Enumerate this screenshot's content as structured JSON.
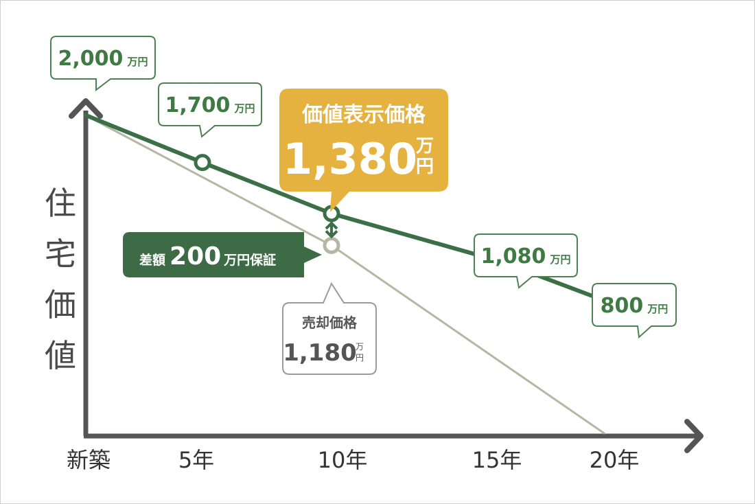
{
  "chart_data": {
    "type": "line",
    "x_categories": [
      "新築",
      "5年",
      "10年",
      "15年",
      "20年"
    ],
    "y_axis_label": "住宅価値",
    "unit": "万円",
    "series": [
      {
        "values": [
          2000,
          1700,
          1380,
          1080,
          800
        ]
      },
      {
        "values": [
          2000,
          null,
          1180,
          null,
          0
        ]
      }
    ],
    "grid": false,
    "callouts": [
      {
        "kind": "value",
        "x": "新築",
        "value": "2,000",
        "unit": "万円"
      },
      {
        "kind": "value",
        "x": "5年",
        "value": "1,700",
        "unit": "万円"
      },
      {
        "kind": "highlight",
        "x": "10年",
        "title": "価値表示価格",
        "value": "1,380",
        "unit": "万円"
      },
      {
        "kind": "value",
        "x": "15年",
        "value": "1,080",
        "unit": "万円"
      },
      {
        "kind": "value",
        "x": "20年",
        "value": "800",
        "unit": "万円"
      },
      {
        "kind": "sale",
        "x": "10年",
        "title": "売却価格",
        "value": "1,180",
        "unit": "万円"
      },
      {
        "kind": "difference",
        "x": "10年",
        "prefix": "差額",
        "value": "200",
        "suffix": "万円保証"
      }
    ]
  },
  "colors": {
    "main_line": "#3b6f45",
    "sale_line": "#b5b7a3",
    "axis": "#555555",
    "callout_text": "#3e7b42",
    "callout_border": "#4e8150",
    "highlight_fill": "#e5b13f",
    "difference_fill": "#3d6b46",
    "sale_border": "#9a9a9a",
    "sale_text": "#555555"
  }
}
